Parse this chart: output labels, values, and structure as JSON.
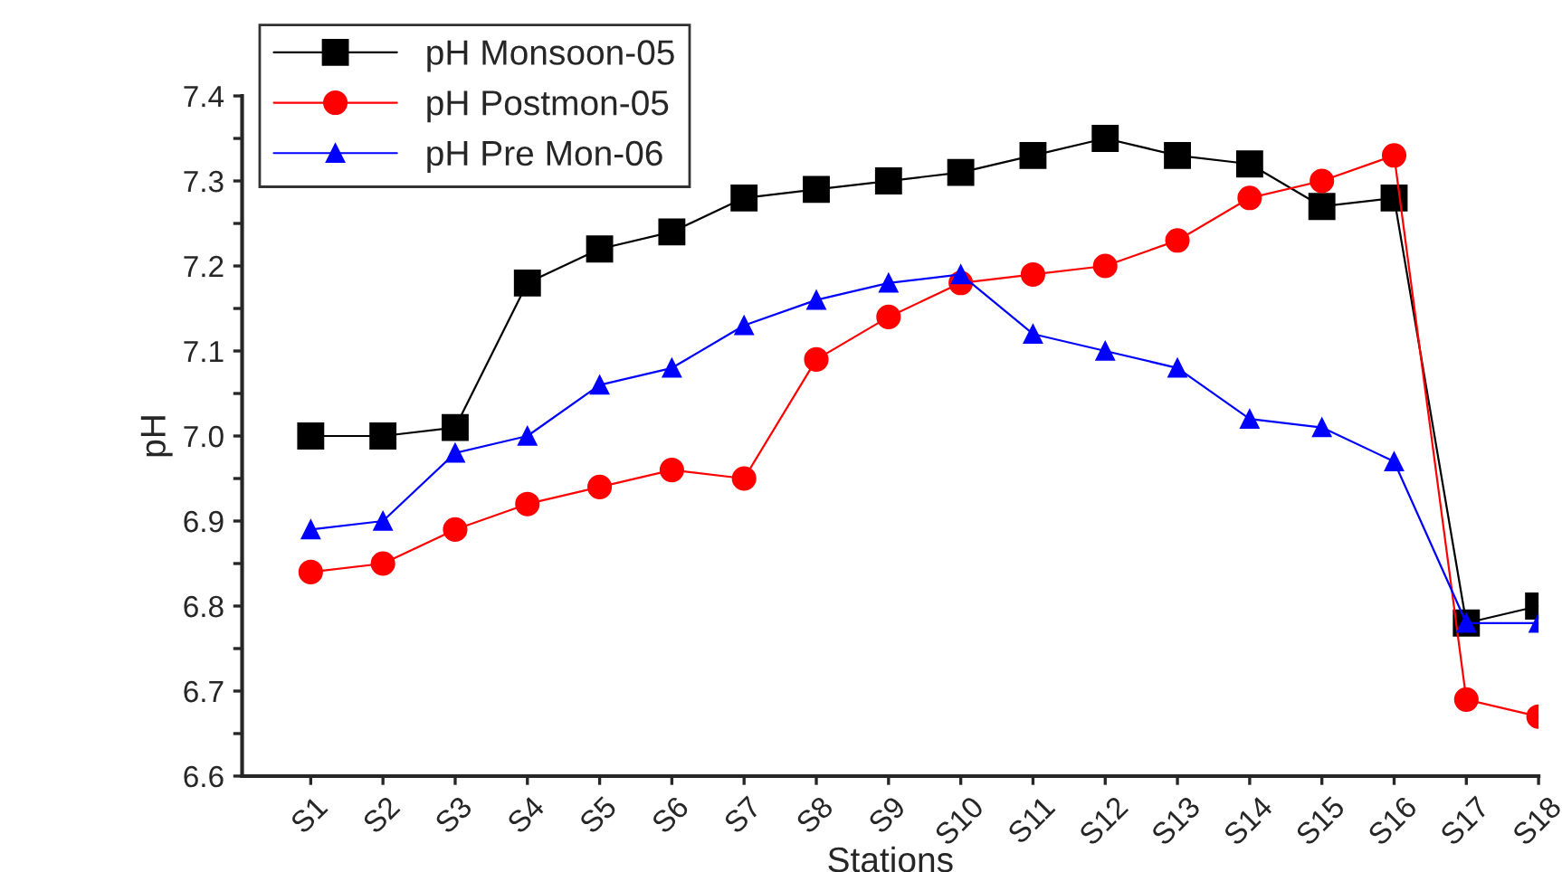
{
  "chart_data": {
    "type": "line",
    "xlabel": "Stations",
    "ylabel": "pH",
    "categories": [
      "S1",
      "S2",
      "S3",
      "S4",
      "S5",
      "S6",
      "S7",
      "S8",
      "S9",
      "S10",
      "S11",
      "S12",
      "S13",
      "S14",
      "S15",
      "S16",
      "S17",
      "S18"
    ],
    "series": [
      {
        "name": "pH Monsoon-05",
        "color": "#000000",
        "marker": "square",
        "values": [
          7.0,
          7.0,
          7.01,
          7.18,
          7.22,
          7.24,
          7.28,
          7.29,
          7.3,
          7.31,
          7.33,
          7.35,
          7.33,
          7.32,
          7.27,
          7.28,
          6.78,
          6.8
        ]
      },
      {
        "name": "pH Postmon-05",
        "color": "#ff0000",
        "marker": "circle",
        "values": [
          6.84,
          6.85,
          6.89,
          6.92,
          6.94,
          6.96,
          6.95,
          7.09,
          7.14,
          7.18,
          7.19,
          7.2,
          7.23,
          7.28,
          7.3,
          7.33,
          6.69,
          6.67
        ]
      },
      {
        "name": "pH Pre Mon-06",
        "color": "#0000ff",
        "marker": "triangle",
        "values": [
          6.89,
          6.9,
          6.98,
          7.0,
          7.06,
          7.08,
          7.13,
          7.16,
          7.18,
          7.19,
          7.12,
          7.1,
          7.08,
          7.02,
          7.01,
          6.97,
          6.78,
          6.78
        ]
      }
    ],
    "ylim": [
      6.6,
      7.4
    ],
    "yticks": [
      6.6,
      {
        "value": 6.65,
        "label": null
      },
      6.7,
      {
        "value": 6.75,
        "label": null
      },
      6.8,
      {
        "value": 6.85,
        "label": null
      },
      6.9,
      {
        "value": 6.95,
        "label": null
      },
      {
        "value": 7.0,
        "label": "7.0"
      },
      {
        "value": 7.05,
        "label": null
      },
      7.1,
      {
        "value": 7.15,
        "label": null
      },
      7.2,
      {
        "value": 7.25,
        "label": null
      },
      7.3,
      {
        "value": 7.35,
        "label": null
      },
      7.4
    ],
    "legend": "top left",
    "grid": false,
    "line_style": "solid"
  }
}
